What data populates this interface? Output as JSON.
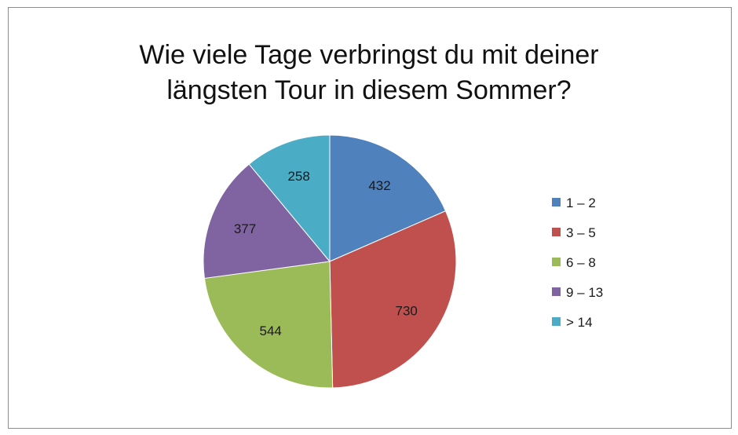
{
  "chart_data": {
    "type": "pie",
    "title_lines": [
      "Wie viele Tage verbringst du mit deiner",
      "längsten Tour in diesem Sommer?"
    ],
    "categories": [
      "1 – 2",
      "3 – 5",
      "6 – 8",
      "9 – 13",
      "> 14"
    ],
    "values": [
      432,
      730,
      544,
      377,
      258
    ],
    "colors": [
      "#4f81bd",
      "#c0504d",
      "#9bbb59",
      "#8064a2",
      "#4bacc6"
    ],
    "legend": "right",
    "start": "12 o'clock",
    "direction": "clockwise"
  }
}
